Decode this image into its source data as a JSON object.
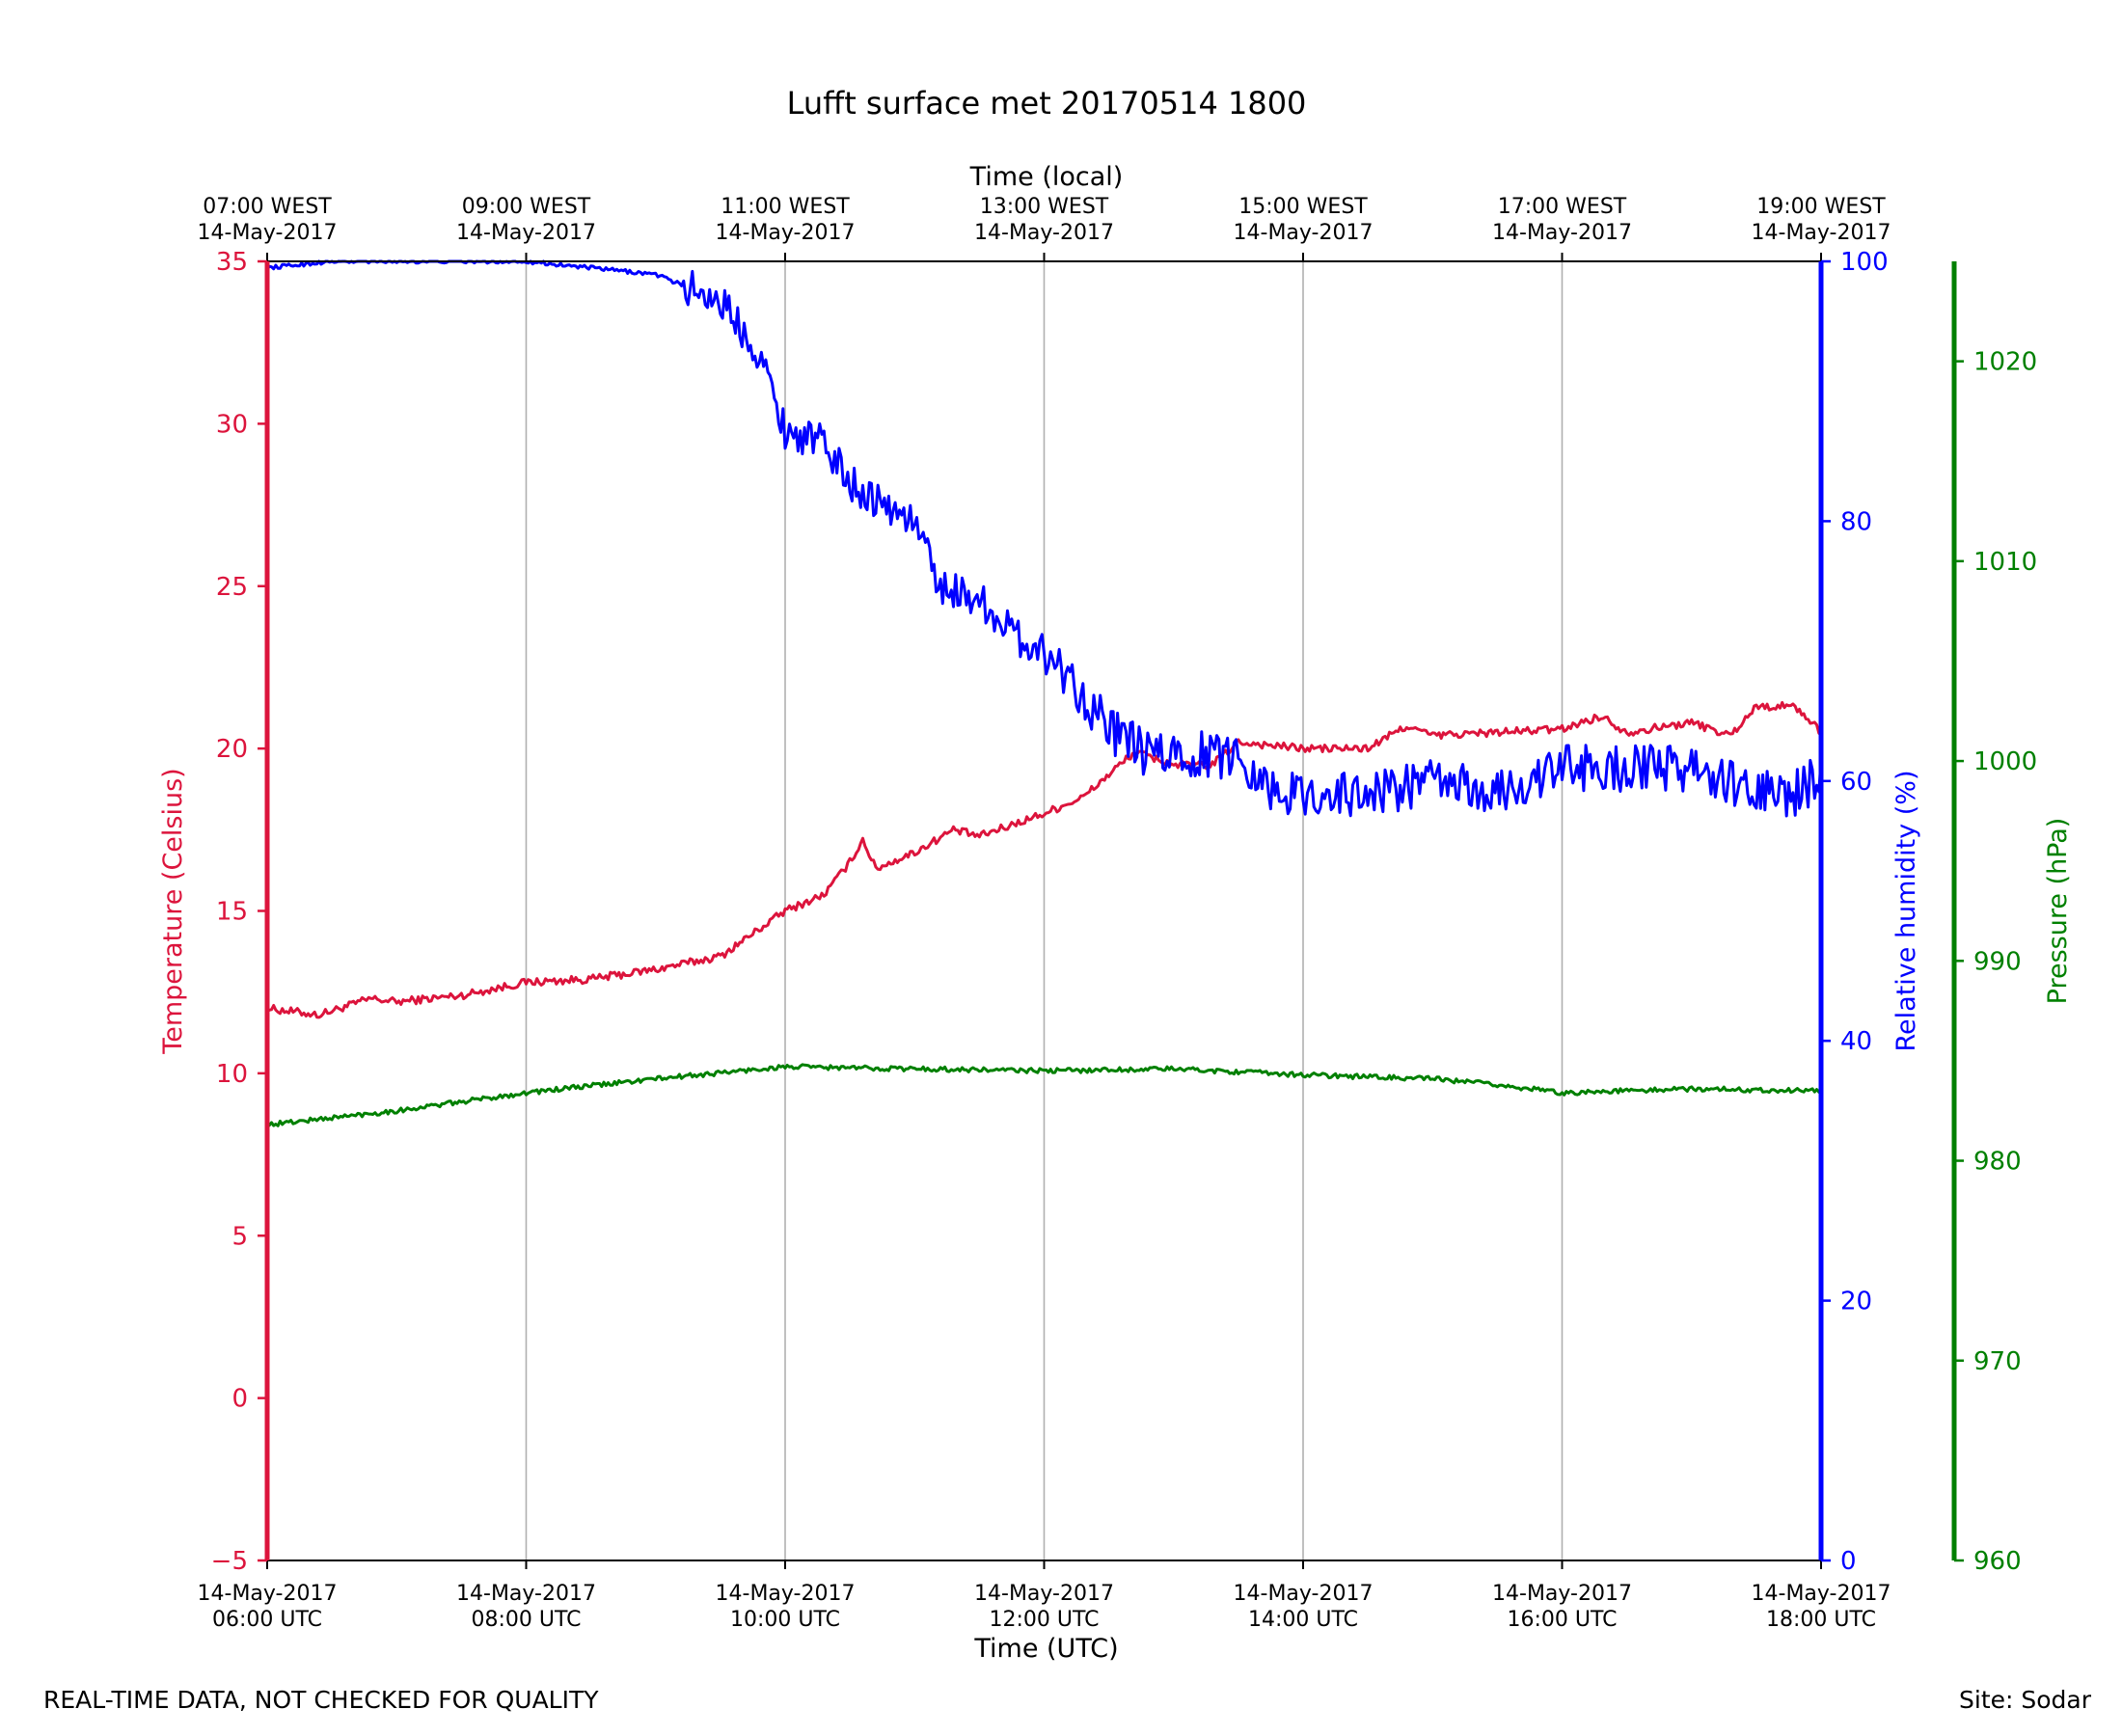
{
  "chart_data": {
    "type": "line",
    "title": "Lufft surface met 20170514 1800",
    "xlabel": "Time (UTC)",
    "x2label": "Time (local)",
    "x_ticks_bottom": [
      {
        "date": "14-May-2017",
        "time": "06:00 UTC",
        "hour": 6
      },
      {
        "date": "14-May-2017",
        "time": "08:00 UTC",
        "hour": 8
      },
      {
        "date": "14-May-2017",
        "time": "10:00 UTC",
        "hour": 10
      },
      {
        "date": "14-May-2017",
        "time": "12:00 UTC",
        "hour": 12
      },
      {
        "date": "14-May-2017",
        "time": "14:00 UTC",
        "hour": 14
      },
      {
        "date": "14-May-2017",
        "time": "16:00 UTC",
        "hour": 16
      },
      {
        "date": "14-May-2017",
        "time": "18:00 UTC",
        "hour": 18
      }
    ],
    "x_ticks_top": [
      {
        "time": "07:00 WEST",
        "date": "14-May-2017",
        "hour": 6
      },
      {
        "time": "09:00 WEST",
        "date": "14-May-2017",
        "hour": 8
      },
      {
        "time": "11:00 WEST",
        "date": "14-May-2017",
        "hour": 10
      },
      {
        "time": "13:00 WEST",
        "date": "14-May-2017",
        "hour": 12
      },
      {
        "time": "15:00 WEST",
        "date": "14-May-2017",
        "hour": 14
      },
      {
        "time": "17:00 WEST",
        "date": "14-May-2017",
        "hour": 16
      },
      {
        "time": "19:00 WEST",
        "date": "14-May-2017",
        "hour": 18
      }
    ],
    "xlim": [
      6,
      18
    ],
    "grid": "vertical",
    "axes": [
      {
        "id": "temp",
        "label": "Temperature (Celsius)",
        "side": "left",
        "color": "#dc143c",
        "ylim": [
          -5,
          35
        ],
        "ticks": [
          -5,
          0,
          5,
          10,
          15,
          20,
          25,
          30,
          35
        ],
        "tick_labels": [
          "−5",
          "0",
          "5",
          "10",
          "15",
          "20",
          "25",
          "30",
          "35"
        ]
      },
      {
        "id": "rh",
        "label": "Relative humidity (%)",
        "side": "right",
        "color": "#0000ff",
        "ylim": [
          0,
          100
        ],
        "ticks": [
          0,
          20,
          40,
          60,
          80,
          100
        ],
        "tick_labels": [
          "0",
          "20",
          "40",
          "60",
          "80",
          "100"
        ]
      },
      {
        "id": "pres",
        "label": "Pressure (hPa)",
        "side": "right-outer",
        "color": "#008000",
        "ylim": [
          960,
          1025
        ],
        "ticks": [
          960,
          970,
          980,
          990,
          1000,
          1010,
          1020
        ],
        "tick_labels": [
          "960",
          "970",
          "980",
          "990",
          "1000",
          "1010",
          "1020"
        ]
      }
    ],
    "series": [
      {
        "name": "Temperature",
        "axis": "temp",
        "color": "#dc143c",
        "x": [
          6.0,
          6.4,
          6.8,
          7.0,
          7.5,
          8.0,
          8.5,
          9.0,
          9.5,
          10.0,
          10.3,
          10.5,
          10.6,
          10.7,
          11.0,
          11.3,
          11.5,
          12.0,
          12.3,
          12.5,
          12.7,
          13.0,
          13.3,
          13.5,
          14.0,
          14.5,
          14.8,
          15.0,
          15.5,
          16.0,
          16.3,
          16.5,
          17.0,
          17.3,
          17.5,
          17.8,
          18.0
        ],
        "values": [
          12.0,
          11.8,
          12.3,
          12.2,
          12.4,
          12.8,
          12.9,
          13.2,
          13.6,
          15.0,
          15.5,
          16.5,
          17.2,
          16.3,
          16.8,
          17.5,
          17.3,
          18.0,
          18.5,
          19.2,
          19.9,
          19.5,
          19.5,
          20.2,
          20.0,
          20.0,
          20.7,
          20.4,
          20.5,
          20.6,
          21.0,
          20.5,
          20.8,
          20.4,
          21.3,
          21.3,
          20.5
        ]
      },
      {
        "name": "Relative humidity",
        "axis": "rh",
        "color": "#0000ff",
        "x": [
          6.0,
          6.5,
          7.0,
          8.0,
          9.0,
          9.5,
          9.8,
          10.0,
          10.3,
          10.5,
          10.8,
          11.0,
          11.2,
          11.5,
          11.8,
          12.0,
          12.2,
          12.5,
          12.8,
          13.0,
          13.5,
          13.8,
          14.0,
          14.5,
          15.0,
          15.5,
          16.0,
          16.5,
          17.0,
          17.5,
          17.8,
          18.0
        ],
        "values": [
          99.5,
          100.0,
          100.0,
          100.0,
          99.0,
          97.0,
          93.0,
          87.0,
          86.0,
          83.0,
          81.0,
          80.0,
          75.0,
          74.0,
          71.0,
          70.0,
          68.0,
          64.0,
          62.0,
          62.0,
          62.0,
          59.0,
          59.0,
          59.0,
          60.0,
          59.0,
          61.0,
          61.0,
          61.0,
          59.0,
          59.0,
          60.5
        ]
      },
      {
        "name": "Pressure",
        "axis": "pres",
        "color": "#008000",
        "x": [
          6.0,
          7.0,
          8.0,
          9.0,
          10.0,
          11.0,
          12.0,
          13.0,
          14.0,
          15.0,
          15.5,
          16.0,
          17.0,
          18.0
        ],
        "values": [
          981.8,
          982.5,
          983.4,
          984.1,
          984.7,
          984.6,
          984.5,
          984.6,
          984.3,
          984.1,
          983.8,
          983.4,
          983.6,
          983.5
        ]
      }
    ]
  },
  "footer": {
    "disclaimer": "REAL-TIME DATA, NOT CHECKED FOR QUALITY",
    "site": "Site: Sodar"
  }
}
